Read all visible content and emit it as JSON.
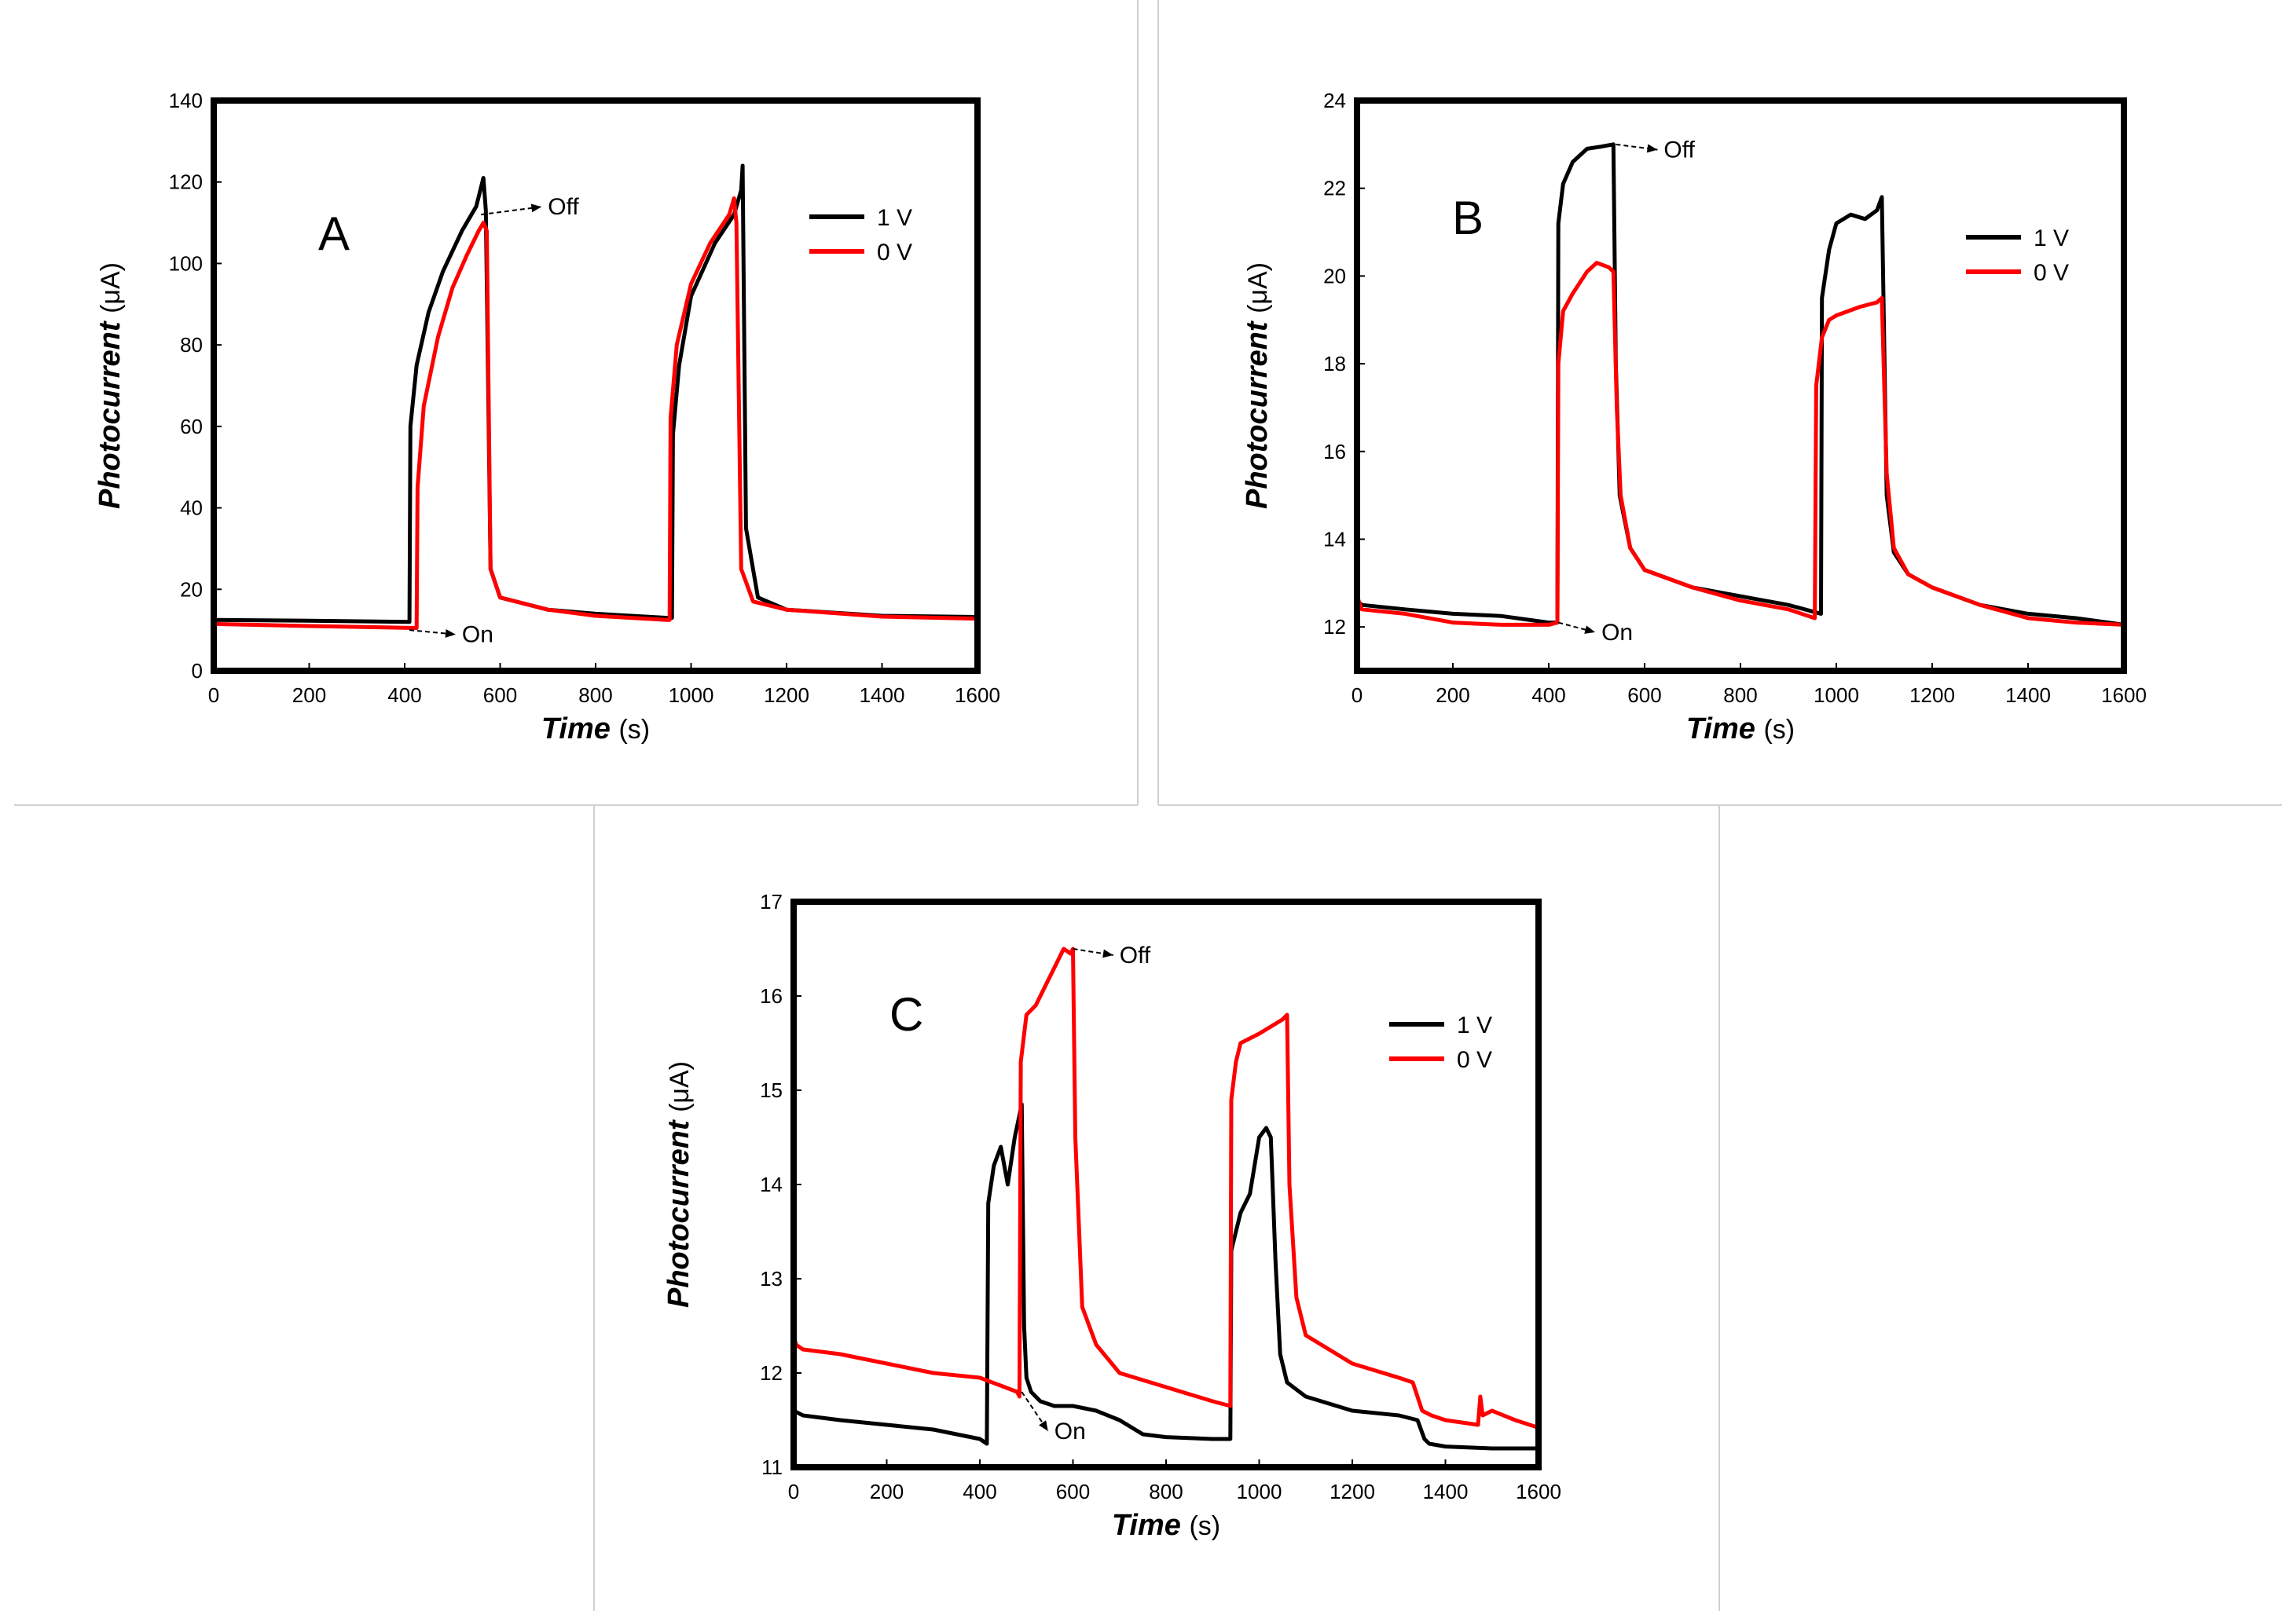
{
  "colors": {
    "series_1v": "#000000",
    "series_0v": "#ff0000"
  },
  "chart_data": [
    {
      "type": "line",
      "panel": "A",
      "xlabel": "Time",
      "xunit": "(s)",
      "ylabel": "Photocurrent",
      "yunit": "(μA)",
      "xlim": [
        0,
        1600
      ],
      "ylim": [
        0,
        140
      ],
      "xticks": [
        0,
        200,
        400,
        600,
        800,
        1000,
        1200,
        1400,
        1600
      ],
      "yticks": [
        0,
        20,
        40,
        60,
        80,
        100,
        120,
        140
      ],
      "legend_position": "top-right",
      "series": [
        {
          "name": "1 V",
          "color": "#000000",
          "x": [
            0,
            200,
            410,
            412,
            425,
            450,
            480,
            520,
            550,
            565,
            570,
            580,
            600,
            700,
            800,
            950,
            960,
            962,
            975,
            1000,
            1050,
            1090,
            1105,
            1108,
            1115,
            1140,
            1200,
            1400,
            1600
          ],
          "y": [
            12.5,
            12.3,
            12,
            60,
            75,
            88,
            98,
            108,
            114,
            121,
            113,
            25,
            18,
            15,
            14,
            13,
            13,
            58,
            75,
            92,
            105,
            112,
            118,
            124,
            35,
            18,
            15,
            13.5,
            13.2
          ]
        },
        {
          "name": "0 V",
          "color": "#ff0000",
          "x": [
            0,
            200,
            425,
            427,
            440,
            470,
            500,
            530,
            555,
            565,
            572,
            580,
            600,
            700,
            800,
            950,
            955,
            957,
            970,
            1000,
            1040,
            1080,
            1090,
            1095,
            1105,
            1130,
            1200,
            1400,
            1600
          ],
          "y": [
            11.5,
            11,
            10.5,
            45,
            65,
            82,
            94,
            102,
            108,
            110,
            108,
            25,
            18,
            15,
            13.5,
            12.5,
            12.5,
            62,
            80,
            95,
            105,
            112,
            116,
            110,
            25,
            17,
            15,
            13.3,
            12.8
          ]
        }
      ],
      "annotations": [
        {
          "text": "Off",
          "x": 560,
          "y": 112,
          "label_x": 700,
          "label_y": 112
        },
        {
          "text": "On",
          "x": 410,
          "y": 10,
          "label_x": 520,
          "label_y": 7
        }
      ]
    },
    {
      "type": "line",
      "panel": "B",
      "xlabel": "Time",
      "xunit": "(s)",
      "ylabel": "Photocurrent",
      "yunit": "(μA)",
      "xlim": [
        0,
        1600
      ],
      "ylim": [
        11,
        24
      ],
      "xticks": [
        0,
        200,
        400,
        600,
        800,
        1000,
        1200,
        1400,
        1600
      ],
      "yticks": [
        12,
        14,
        16,
        18,
        20,
        22,
        24
      ],
      "legend_position": "top-right",
      "series": [
        {
          "name": "1 V",
          "color": "#000000",
          "x": [
            0,
            10,
            100,
            200,
            300,
            400,
            418,
            420,
            430,
            450,
            480,
            510,
            535,
            540,
            548,
            570,
            600,
            700,
            800,
            900,
            968,
            970,
            985,
            1000,
            1030,
            1060,
            1085,
            1095,
            1105,
            1120,
            1150,
            1200,
            1300,
            1400,
            1500,
            1600
          ],
          "y": [
            12.6,
            12.5,
            12.4,
            12.3,
            12.25,
            12.1,
            12.1,
            21.2,
            22.1,
            22.6,
            22.9,
            22.95,
            23.0,
            18,
            15,
            13.8,
            13.3,
            12.9,
            12.7,
            12.5,
            12.3,
            19.5,
            20.6,
            21.2,
            21.4,
            21.3,
            21.5,
            21.8,
            15,
            13.7,
            13.2,
            12.9,
            12.5,
            12.3,
            12.2,
            12.05
          ]
        },
        {
          "name": "0 V",
          "color": "#ff0000",
          "x": [
            0,
            10,
            100,
            200,
            300,
            400,
            418,
            420,
            430,
            450,
            480,
            500,
            525,
            535,
            542,
            550,
            570,
            600,
            700,
            800,
            900,
            955,
            958,
            970,
            985,
            1000,
            1050,
            1085,
            1095,
            1105,
            1120,
            1150,
            1200,
            1300,
            1400,
            1500,
            1600
          ],
          "y": [
            12.7,
            12.4,
            12.3,
            12.1,
            12.05,
            12.05,
            12.1,
            18,
            19.2,
            19.6,
            20.1,
            20.3,
            20.2,
            20.1,
            17,
            15,
            13.8,
            13.3,
            12.9,
            12.6,
            12.4,
            12.2,
            17.5,
            18.6,
            19.0,
            19.1,
            19.3,
            19.4,
            19.5,
            15.5,
            13.8,
            13.2,
            12.9,
            12.5,
            12.2,
            12.1,
            12.05
          ]
        }
      ],
      "annotations": [
        {
          "text": "Off",
          "x": 540,
          "y": 23.0,
          "label_x": 640,
          "label_y": 22.7
        },
        {
          "text": "On",
          "x": 420,
          "y": 12.1,
          "label_x": 510,
          "label_y": 11.7
        }
      ]
    },
    {
      "type": "line",
      "panel": "C",
      "xlabel": "Time",
      "xunit": "(s)",
      "ylabel": "Photocurrent",
      "yunit": "(μA)",
      "xlim": [
        0,
        1600
      ],
      "ylim": [
        11,
        17
      ],
      "xticks": [
        0,
        200,
        400,
        600,
        800,
        1000,
        1200,
        1400,
        1600
      ],
      "yticks": [
        11,
        12,
        13,
        14,
        15,
        16,
        17
      ],
      "legend_position": "top-right",
      "series": [
        {
          "name": "1 V",
          "color": "#000000",
          "x": [
            0,
            20,
            100,
            200,
            300,
            400,
            415,
            418,
            430,
            445,
            460,
            475,
            490,
            495,
            500,
            510,
            530,
            560,
            600,
            650,
            700,
            750,
            800,
            900,
            938,
            940,
            950,
            960,
            980,
            1000,
            1015,
            1025,
            1035,
            1045,
            1060,
            1100,
            1200,
            1300,
            1340,
            1355,
            1365,
            1400,
            1500,
            1600
          ],
          "y": [
            11.6,
            11.55,
            11.5,
            11.45,
            11.4,
            11.3,
            11.25,
            13.8,
            14.2,
            14.4,
            14.0,
            14.5,
            14.85,
            12.5,
            11.95,
            11.8,
            11.7,
            11.65,
            11.65,
            11.6,
            11.5,
            11.35,
            11.32,
            11.3,
            11.3,
            13.3,
            13.5,
            13.7,
            13.9,
            14.5,
            14.6,
            14.5,
            13.2,
            12.2,
            11.9,
            11.75,
            11.6,
            11.55,
            11.5,
            11.3,
            11.25,
            11.22,
            11.2,
            11.2
          ]
        },
        {
          "name": "0 V",
          "color": "#ff0000",
          "x": [
            0,
            5,
            20,
            100,
            200,
            300,
            400,
            480,
            485,
            488,
            500,
            520,
            550,
            580,
            595,
            600,
            605,
            620,
            650,
            700,
            800,
            900,
            938,
            940,
            950,
            960,
            1000,
            1050,
            1060,
            1065,
            1080,
            1100,
            1200,
            1300,
            1330,
            1350,
            1370,
            1400,
            1470,
            1475,
            1480,
            1500,
            1550,
            1600
          ],
          "y": [
            12.4,
            12.3,
            12.25,
            12.2,
            12.1,
            12.0,
            11.95,
            11.8,
            11.75,
            15.3,
            15.8,
            15.9,
            16.2,
            16.5,
            16.45,
            16.5,
            14.5,
            12.7,
            12.3,
            12.0,
            11.85,
            11.7,
            11.65,
            14.9,
            15.3,
            15.5,
            15.6,
            15.75,
            15.8,
            14.0,
            12.8,
            12.4,
            12.1,
            11.95,
            11.9,
            11.6,
            11.55,
            11.5,
            11.45,
            11.75,
            11.55,
            11.6,
            11.5,
            11.42
          ]
        }
      ],
      "annotations": [
        {
          "text": "Off",
          "x": 600,
          "y": 16.5,
          "label_x": 700,
          "label_y": 16.35
        },
        {
          "text": "On",
          "x": 490,
          "y": 11.8,
          "label_x": 560,
          "label_y": 11.3
        }
      ]
    }
  ]
}
